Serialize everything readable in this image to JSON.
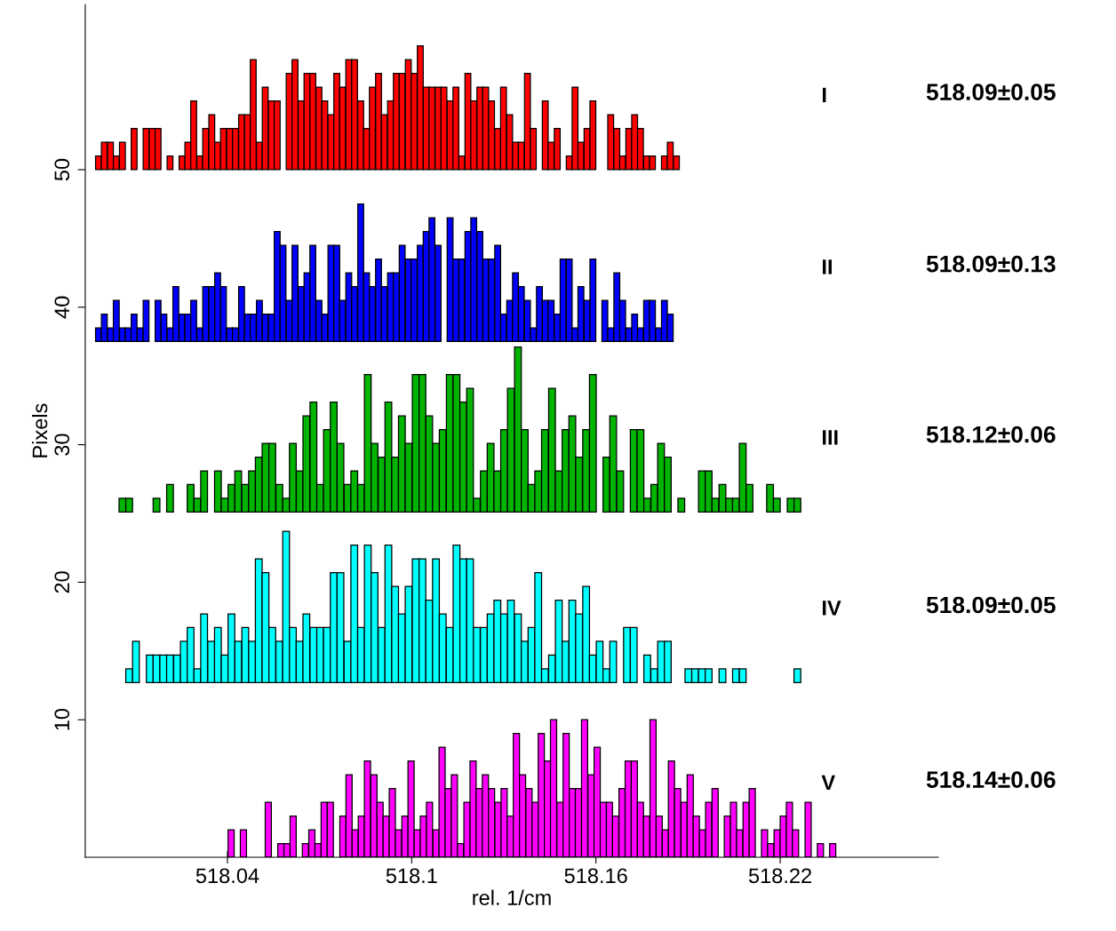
{
  "chart_data": {
    "type": "bar",
    "xlabel": "rel. 1/cm",
    "ylabel": "Pixels",
    "grid": false,
    "legend": false,
    "xlim": [
      517.9937,
      518.2715
    ],
    "xticks": [
      {
        "value": 518.04,
        "label": "518.04"
      },
      {
        "value": 518.1,
        "label": "518.1"
      },
      {
        "value": 518.16,
        "label": "518.16"
      },
      {
        "value": 518.22,
        "label": "518.22"
      }
    ],
    "ylim": [
      0,
      62
    ],
    "yticks": [
      10,
      20,
      30,
      40,
      50
    ],
    "annotations": [
      "518.09±0.05",
      "518.09±0.13",
      "518.12±0.06",
      "518.09±0.05",
      "518.14±0.06"
    ],
    "series": [
      {
        "name": "I",
        "color": "#ff0000",
        "x": [
          517.998,
          517.9999,
          518.0019,
          518.0038,
          518.0058,
          518.0077,
          518.0096,
          518.0116,
          518.0135,
          518.0155,
          518.0174,
          518.0193,
          518.0213,
          518.0232,
          518.0252,
          518.0271,
          518.029,
          518.031,
          518.0329,
          518.0349,
          518.0368,
          518.0387,
          518.0407,
          518.0426,
          518.0446,
          518.0465,
          518.0484,
          518.0504,
          518.0523,
          518.0543,
          518.0562,
          518.0581,
          518.0601,
          518.062,
          518.064,
          518.0659,
          518.0678,
          518.0698,
          518.0717,
          518.0737,
          518.0756,
          518.0775,
          518.0795,
          518.0814,
          518.0834,
          518.0853,
          518.0872,
          518.0892,
          518.0911,
          518.0931,
          518.095,
          518.0969,
          518.0989,
          518.1008,
          518.1028,
          518.1047,
          518.1066,
          518.1086,
          518.1105,
          518.1125,
          518.1144,
          518.1163,
          518.1183,
          518.1202,
          518.1222,
          518.1241,
          518.126,
          518.128,
          518.1299,
          518.1319,
          518.1338,
          518.1357,
          518.1377,
          518.1396,
          518.1416,
          518.1435,
          518.1454,
          518.1474,
          518.1493,
          518.1513,
          518.1532,
          518.1551,
          518.1571,
          518.159,
          518.161,
          518.1629,
          518.1648,
          518.1668,
          518.1687,
          518.1707,
          518.1726,
          518.1745,
          518.1765,
          518.1784,
          518.1804,
          518.1823,
          518.1842,
          518.1862
        ],
        "base": [
          50,
          50,
          50,
          50,
          50,
          null,
          50,
          null,
          50,
          50,
          50,
          null,
          50,
          null,
          50,
          50,
          50,
          50,
          50,
          50,
          50,
          50,
          50,
          50,
          50,
          50,
          50,
          50,
          50,
          50,
          50,
          null,
          50,
          50,
          50,
          50,
          50,
          50,
          50,
          50,
          50,
          50,
          50,
          50,
          50,
          50,
          50,
          50,
          50,
          50,
          50,
          50,
          50,
          50,
          50,
          50,
          50,
          50,
          50,
          50,
          50,
          50,
          50,
          50,
          50,
          50,
          50,
          50,
          50,
          50,
          50,
          50,
          50,
          50,
          null,
          50,
          50,
          50,
          null,
          50,
          50,
          50,
          50,
          50,
          null,
          null,
          50,
          50,
          50,
          50,
          50,
          50,
          50,
          50,
          null,
          50,
          50,
          50
        ],
        "values": [
          1,
          2,
          2,
          1,
          2,
          0,
          3,
          0,
          3,
          3,
          3,
          0,
          1,
          0,
          1,
          2,
          5,
          1,
          3,
          4,
          2,
          3,
          3,
          3,
          4,
          4,
          8,
          2,
          6,
          5,
          5,
          0,
          7,
          8,
          5,
          7,
          7,
          6,
          5,
          4,
          7,
          6,
          8,
          8,
          5,
          3,
          6,
          7,
          4,
          5,
          7,
          7,
          8,
          7,
          9,
          6,
          6,
          6,
          6,
          5,
          6,
          1,
          7,
          5,
          6,
          6,
          5,
          3,
          6,
          4,
          2,
          2,
          7,
          3,
          0,
          5,
          2,
          3,
          0,
          1,
          6,
          2,
          3,
          5,
          0,
          0,
          4,
          3,
          1,
          3,
          4,
          3,
          1,
          1,
          0,
          1,
          2,
          1
        ]
      },
      {
        "name": "II",
        "color": "#0000ff",
        "x": [
          517.998,
          517.9999,
          518.0019,
          518.0038,
          518.0058,
          518.0077,
          518.0096,
          518.0116,
          518.0135,
          518.0155,
          518.0174,
          518.0193,
          518.0213,
          518.0232,
          518.0252,
          518.0271,
          518.029,
          518.031,
          518.0329,
          518.0349,
          518.0368,
          518.0387,
          518.0407,
          518.0426,
          518.0446,
          518.0465,
          518.0484,
          518.0504,
          518.0523,
          518.0543,
          518.0562,
          518.0581,
          518.0601,
          518.062,
          518.064,
          518.0659,
          518.0678,
          518.0698,
          518.0717,
          518.0737,
          518.0756,
          518.0775,
          518.0795,
          518.0814,
          518.0834,
          518.0853,
          518.0872,
          518.0892,
          518.0911,
          518.0931,
          518.095,
          518.0969,
          518.0989,
          518.1008,
          518.1028,
          518.1047,
          518.1066,
          518.1086,
          518.1105,
          518.1125,
          518.1144,
          518.1163,
          518.1183,
          518.1202,
          518.1222,
          518.1241,
          518.126,
          518.128,
          518.1299,
          518.1319,
          518.1338,
          518.1357,
          518.1377,
          518.1396,
          518.1416,
          518.1435,
          518.1454,
          518.1474,
          518.1493,
          518.1513,
          518.1532,
          518.1551,
          518.1571,
          518.159,
          518.161,
          518.1629,
          518.1648,
          518.1668,
          518.1687,
          518.1707,
          518.1726,
          518.1745,
          518.1765,
          518.1784,
          518.1804,
          518.1823,
          518.1842
        ],
        "base": [
          37.5,
          37.5,
          37.5,
          37.5,
          37.5,
          37.5,
          37.5,
          37.5,
          37.5,
          null,
          37.5,
          37.5,
          37.5,
          37.5,
          37.5,
          37.5,
          37.5,
          37.5,
          37.5,
          37.5,
          37.5,
          37.5,
          37.5,
          37.5,
          37.5,
          37.5,
          37.5,
          37.5,
          37.5,
          37.5,
          37.5,
          37.5,
          37.5,
          37.5,
          37.5,
          37.5,
          37.5,
          37.5,
          37.5,
          37.5,
          37.5,
          37.5,
          37.5,
          37.5,
          37.5,
          37.5,
          37.5,
          37.5,
          37.5,
          37.5,
          37.5,
          37.5,
          37.5,
          37.5,
          37.5,
          37.5,
          37.5,
          37.5,
          null,
          37.5,
          37.5,
          37.5,
          37.5,
          37.5,
          37.5,
          37.5,
          37.5,
          37.5,
          37.5,
          37.5,
          37.5,
          37.5,
          37.5,
          37.5,
          37.5,
          37.5,
          37.5,
          37.5,
          37.5,
          37.5,
          37.5,
          37.5,
          37.5,
          37.5,
          null,
          37.5,
          37.5,
          37.5,
          37.5,
          37.5,
          37.5,
          37.5,
          37.5,
          37.5,
          37.5,
          37.5,
          37.5
        ],
        "values": [
          1,
          2,
          1,
          3,
          1,
          1,
          2,
          1,
          3,
          0,
          3,
          2,
          1,
          4,
          2,
          2,
          3,
          1,
          4,
          4,
          5,
          4,
          1,
          1,
          4,
          2,
          2,
          3,
          2,
          2,
          8,
          7,
          3,
          7,
          4,
          5,
          7,
          3,
          2,
          7,
          7,
          3,
          5,
          4,
          10,
          5,
          4,
          6,
          4,
          5,
          5,
          7,
          6,
          6,
          7,
          8,
          9,
          7,
          0,
          9,
          6,
          6,
          8,
          9,
          8,
          6,
          6,
          7,
          2,
          3,
          5,
          4,
          3,
          1,
          4,
          3,
          3,
          2,
          6,
          6,
          1,
          4,
          3,
          6,
          0,
          3,
          1,
          5,
          3,
          1,
          2,
          1,
          3,
          3,
          1,
          3,
          2
        ]
      },
      {
        "name": "III",
        "color": "#00b400",
        "x": [
          518.0058,
          518.008,
          518.0102,
          518.0125,
          518.0147,
          518.0169,
          518.0191,
          518.0213,
          518.0236,
          518.0258,
          518.028,
          518.0302,
          518.0324,
          518.0347,
          518.0369,
          518.0391,
          518.0413,
          518.0435,
          518.0458,
          518.048,
          518.0502,
          518.0524,
          518.0546,
          518.0569,
          518.0591,
          518.0613,
          518.0635,
          518.0657,
          518.068,
          518.0702,
          518.0724,
          518.0746,
          518.0768,
          518.0791,
          518.0813,
          518.0835,
          518.0857,
          518.0879,
          518.0902,
          518.0924,
          518.0946,
          518.0968,
          518.099,
          518.1013,
          518.1035,
          518.1057,
          518.1079,
          518.1101,
          518.1124,
          518.1146,
          518.1168,
          518.119,
          518.1212,
          518.1235,
          518.1257,
          518.1279,
          518.1301,
          518.1323,
          518.1346,
          518.1368,
          518.139,
          518.1412,
          518.1434,
          518.1457,
          518.1479,
          518.1501,
          518.1523,
          518.1545,
          518.1568,
          518.159,
          518.1612,
          518.1634,
          518.1656,
          518.1679,
          518.1701,
          518.1723,
          518.1745,
          518.1767,
          518.179,
          518.1812,
          518.1834,
          518.1856,
          518.1878,
          518.1901,
          518.1923,
          518.1945,
          518.1967,
          518.1989,
          518.2012,
          518.2034,
          518.2056,
          518.2078,
          518.21,
          518.2123,
          518.2145,
          518.2167,
          518.2189,
          518.2211,
          518.2234,
          518.2256
        ],
        "base": [
          25.1,
          25.1,
          null,
          null,
          null,
          25.1,
          null,
          25.1,
          null,
          null,
          25.1,
          25.1,
          25.1,
          null,
          25.1,
          25.1,
          25.1,
          25.1,
          25.1,
          25.1,
          25.1,
          25.1,
          25.1,
          25.1,
          25.1,
          25.1,
          25.1,
          25.1,
          25.1,
          25.1,
          25.1,
          25.1,
          25.1,
          25.1,
          25.1,
          25.1,
          25.1,
          25.1,
          25.1,
          25.1,
          25.1,
          25.1,
          25.1,
          25.1,
          25.1,
          25.1,
          25.1,
          25.1,
          25.1,
          25.1,
          25.1,
          25.1,
          25.1,
          25.1,
          25.1,
          25.1,
          25.1,
          25.1,
          25.1,
          25.1,
          25.1,
          25.1,
          25.1,
          25.1,
          25.1,
          25.1,
          25.1,
          25.1,
          25.1,
          25.1,
          null,
          25.1,
          25.1,
          25.1,
          null,
          25.1,
          25.1,
          25.1,
          25.1,
          25.1,
          25.1,
          null,
          25.1,
          null,
          null,
          25.1,
          25.1,
          25.1,
          25.1,
          25.1,
          25.1,
          25.1,
          25.1,
          null,
          null,
          25.1,
          25.1,
          null,
          25.1,
          25.1
        ],
        "values": [
          1,
          1,
          0,
          0,
          0,
          1,
          0,
          2,
          0,
          0,
          2,
          1,
          3,
          0,
          3,
          1,
          2,
          3,
          2,
          3,
          4,
          5,
          5,
          2,
          1,
          5,
          3,
          7,
          8,
          2,
          6,
          8,
          5,
          2,
          3,
          2,
          10,
          5,
          4,
          8,
          4,
          7,
          5,
          10,
          10,
          7,
          5,
          6,
          10,
          10,
          8,
          9,
          1,
          3,
          5,
          3,
          6,
          9,
          12,
          6,
          2,
          3,
          6,
          9,
          3,
          6,
          7,
          4,
          6,
          10,
          0,
          4,
          7,
          3,
          0,
          6,
          6,
          1,
          2,
          5,
          4,
          0,
          1,
          0,
          0,
          3,
          3,
          1,
          2,
          1,
          1,
          5,
          2,
          0,
          0,
          2,
          1,
          0,
          1,
          1
        ]
      },
      {
        "name": "IV",
        "color": "#00ffff",
        "x": [
          518.008,
          518.0102,
          518.0125,
          518.0147,
          518.0169,
          518.0191,
          518.0213,
          518.0236,
          518.0258,
          518.028,
          518.0302,
          518.0324,
          518.0347,
          518.0369,
          518.0391,
          518.0413,
          518.0435,
          518.0458,
          518.048,
          518.0502,
          518.0524,
          518.0546,
          518.0569,
          518.0591,
          518.0613,
          518.0635,
          518.0657,
          518.068,
          518.0702,
          518.0724,
          518.0746,
          518.0768,
          518.0791,
          518.0813,
          518.0835,
          518.0857,
          518.0879,
          518.0902,
          518.0924,
          518.0946,
          518.0968,
          518.099,
          518.1013,
          518.1035,
          518.1057,
          518.1079,
          518.1101,
          518.1124,
          518.1146,
          518.1168,
          518.119,
          518.1212,
          518.1235,
          518.1257,
          518.1279,
          518.1301,
          518.1323,
          518.1346,
          518.1368,
          518.139,
          518.1412,
          518.1434,
          518.1457,
          518.1479,
          518.1501,
          518.1523,
          518.1545,
          518.1568,
          518.159,
          518.1612,
          518.1634,
          518.1656,
          518.1679,
          518.1701,
          518.1723,
          518.1745,
          518.1767,
          518.179,
          518.1812,
          518.1834,
          518.1856,
          518.1878,
          518.1901,
          518.1923,
          518.1945,
          518.1967,
          518.1989,
          518.2012,
          518.2034,
          518.2056,
          518.2078,
          518.21,
          518.2123,
          518.2145,
          518.2167,
          518.2189,
          518.2211,
          518.2234,
          518.2256
        ],
        "base": [
          12.7,
          12.7,
          null,
          12.7,
          12.7,
          12.7,
          12.7,
          12.7,
          12.7,
          12.7,
          12.7,
          12.7,
          12.7,
          12.7,
          12.7,
          12.7,
          12.7,
          12.7,
          12.7,
          12.7,
          12.7,
          12.7,
          12.7,
          12.7,
          12.7,
          12.7,
          12.7,
          12.7,
          12.7,
          12.7,
          12.7,
          12.7,
          12.7,
          12.7,
          12.7,
          12.7,
          12.7,
          12.7,
          12.7,
          12.7,
          12.7,
          12.7,
          12.7,
          12.7,
          12.7,
          12.7,
          12.7,
          12.7,
          12.7,
          12.7,
          12.7,
          12.7,
          12.7,
          12.7,
          12.7,
          12.7,
          12.7,
          12.7,
          12.7,
          12.7,
          12.7,
          12.7,
          12.7,
          12.7,
          12.7,
          12.7,
          12.7,
          12.7,
          12.7,
          12.7,
          12.7,
          12.7,
          null,
          12.7,
          12.7,
          null,
          12.7,
          12.7,
          12.7,
          12.7,
          null,
          null,
          12.7,
          12.7,
          12.7,
          12.7,
          null,
          12.7,
          null,
          12.7,
          12.7,
          null,
          null,
          null,
          null,
          null,
          null,
          null,
          12.7
        ],
        "values": [
          1,
          3,
          0,
          2,
          2,
          2,
          2,
          2,
          3,
          4,
          1,
          5,
          3,
          4,
          2,
          5,
          3,
          4,
          3,
          9,
          8,
          4,
          3,
          11,
          4,
          3,
          5,
          4,
          4,
          4,
          8,
          8,
          3,
          10,
          4,
          10,
          8,
          4,
          10,
          7,
          5,
          7,
          9,
          9,
          6,
          9,
          5,
          4,
          10,
          9,
          9,
          4,
          4,
          5,
          6,
          5,
          6,
          5,
          3,
          4,
          8,
          1,
          2,
          6,
          3,
          6,
          5,
          7,
          2,
          3,
          1,
          3,
          0,
          4,
          4,
          0,
          2,
          1,
          3,
          3,
          0,
          0,
          1,
          1,
          1,
          1,
          0,
          1,
          0,
          1,
          1,
          0,
          0,
          0,
          0,
          0,
          0,
          0,
          1
        ]
      },
      {
        "name": "V",
        "color": "#ff00ff",
        "x": [
          518.0412,
          518.0432,
          518.0452,
          518.0473,
          518.0493,
          518.0513,
          518.0533,
          518.0553,
          518.0574,
          518.0594,
          518.0614,
          518.0634,
          518.0654,
          518.0675,
          518.0695,
          518.0715,
          518.0735,
          518.0755,
          518.0776,
          518.0796,
          518.0816,
          518.0836,
          518.0856,
          518.0877,
          518.0897,
          518.0917,
          518.0937,
          518.0957,
          518.0978,
          518.0998,
          518.1018,
          518.1038,
          518.1058,
          518.1079,
          518.1099,
          518.1119,
          518.1139,
          518.1159,
          518.118,
          518.12,
          518.122,
          518.124,
          518.126,
          518.1281,
          518.1301,
          518.1321,
          518.1341,
          518.1361,
          518.1382,
          518.1402,
          518.1422,
          518.1442,
          518.1462,
          518.1483,
          518.1503,
          518.1523,
          518.1543,
          518.1563,
          518.1584,
          518.1604,
          518.1624,
          518.1644,
          518.1664,
          518.1685,
          518.1705,
          518.1725,
          518.1745,
          518.1765,
          518.1786,
          518.1806,
          518.1826,
          518.1846,
          518.1866,
          518.1887,
          518.1907,
          518.1927,
          518.1947,
          518.1967,
          518.1988,
          518.2008,
          518.2028,
          518.2048,
          518.2068,
          518.2089,
          518.2109,
          518.2129,
          518.2149,
          518.2169,
          518.219,
          518.221,
          518.223,
          518.225,
          518.227,
          518.2291,
          518.2311,
          518.2331,
          518.2351,
          518.2371
        ],
        "base": [
          0,
          null,
          0,
          null,
          null,
          null,
          0,
          null,
          0,
          0,
          0,
          null,
          0,
          0,
          0,
          0,
          0,
          null,
          0,
          0,
          0,
          0,
          0,
          0,
          0,
          0,
          0,
          0,
          0,
          0,
          0,
          0,
          0,
          0,
          0,
          0,
          0,
          0,
          0,
          0,
          0,
          0,
          0,
          0,
          0,
          0,
          0,
          0,
          0,
          0,
          0,
          0,
          0,
          0,
          0,
          0,
          0,
          0,
          0,
          0,
          0,
          0,
          0,
          0,
          0,
          0,
          0,
          0,
          0,
          0,
          0,
          0,
          0,
          0,
          0,
          0,
          0,
          0,
          0,
          null,
          0,
          0,
          0,
          0,
          0,
          null,
          0,
          0,
          0,
          0,
          0,
          0,
          null,
          0,
          null,
          0,
          null,
          0
        ],
        "values": [
          2,
          0,
          2,
          0,
          0,
          0,
          4,
          0,
          1,
          1,
          3,
          0,
          1,
          2,
          1,
          4,
          4,
          0,
          3,
          6,
          2,
          3,
          7,
          6,
          4,
          3,
          5,
          2,
          3,
          7,
          2,
          3,
          4,
          2,
          8,
          5,
          6,
          1,
          4,
          7,
          5,
          6,
          5,
          4,
          5,
          3,
          9,
          6,
          5,
          4,
          9,
          7,
          10,
          4,
          9,
          5,
          5,
          10,
          6,
          8,
          4,
          4,
          3,
          5,
          7,
          7,
          4,
          3,
          10,
          3,
          2,
          7,
          5,
          4,
          6,
          3,
          2,
          4,
          5,
          0,
          3,
          4,
          2,
          4,
          5,
          0,
          2,
          1,
          2,
          3,
          4,
          2,
          0,
          4,
          0,
          1,
          0,
          1
        ]
      }
    ]
  }
}
